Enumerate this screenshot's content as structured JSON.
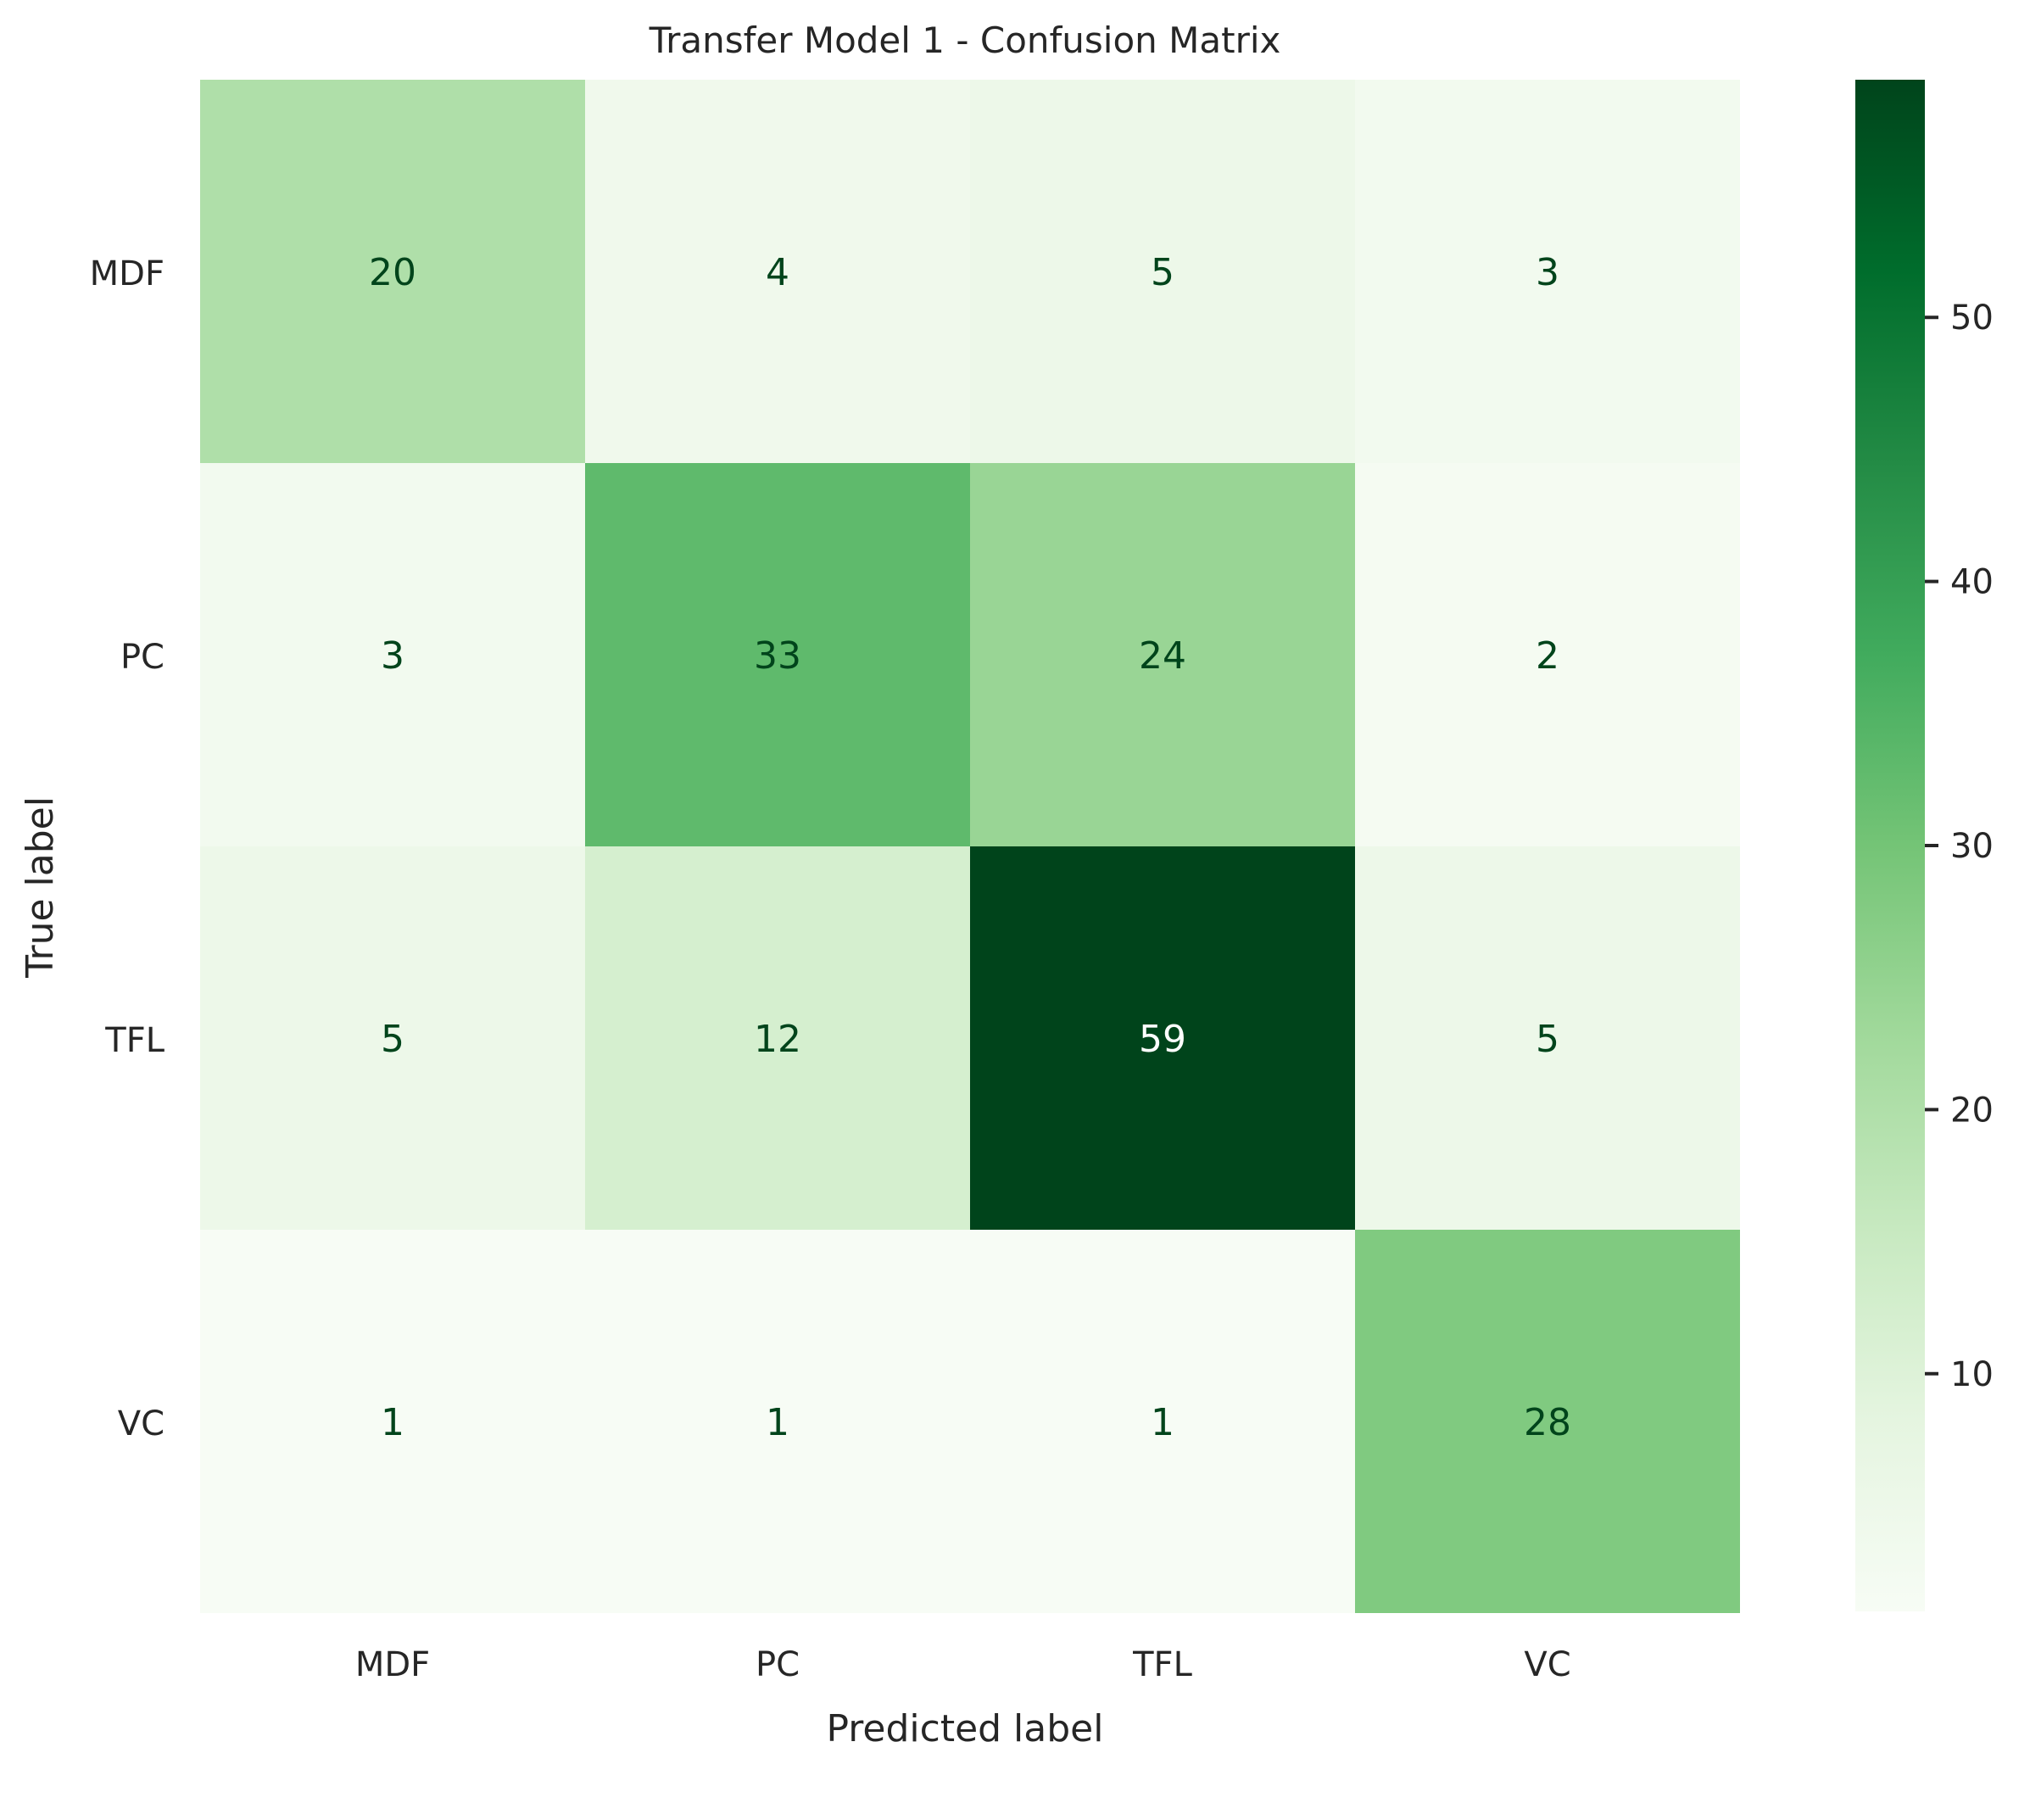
{
  "chart_data": {
    "type": "heatmap",
    "title": "Transfer Model 1 - Confusion Matrix",
    "xlabel": "Predicted label",
    "ylabel": "True label",
    "x_categories": [
      "MDF",
      "PC",
      "TFL",
      "VC"
    ],
    "y_categories": [
      "MDF",
      "PC",
      "TFL",
      "VC"
    ],
    "values": [
      [
        20,
        4,
        5,
        3
      ],
      [
        3,
        33,
        24,
        2
      ],
      [
        5,
        12,
        59,
        5
      ],
      [
        1,
        1,
        1,
        28
      ]
    ],
    "colormap": "Greens",
    "colorbar": {
      "range": [
        1,
        59
      ],
      "ticks": [
        10,
        20,
        30,
        40,
        50
      ]
    },
    "annotation_colors": {
      "dark_text": "#00441b",
      "light_text": "#ffffff"
    }
  }
}
